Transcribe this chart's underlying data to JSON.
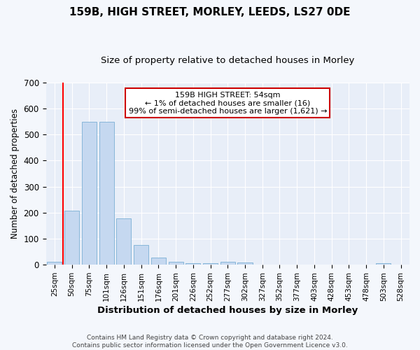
{
  "title": "159B, HIGH STREET, MORLEY, LEEDS, LS27 0DE",
  "subtitle": "Size of property relative to detached houses in Morley",
  "xlabel": "Distribution of detached houses by size in Morley",
  "ylabel": "Number of detached properties",
  "footer_line1": "Contains HM Land Registry data © Crown copyright and database right 2024.",
  "footer_line2": "Contains public sector information licensed under the Open Government Licence v3.0.",
  "annotation_title": "159B HIGH STREET: 54sqm",
  "annotation_line1": "← 1% of detached houses are smaller (16)",
  "annotation_line2": "99% of semi-detached houses are larger (1,621) →",
  "bar_color": "#c5d8f0",
  "bar_edge_color": "#7bafd4",
  "red_line_index": 1,
  "categories": [
    "25sqm",
    "50sqm",
    "75sqm",
    "101sqm",
    "126sqm",
    "151sqm",
    "176sqm",
    "201sqm",
    "226sqm",
    "252sqm",
    "277sqm",
    "302sqm",
    "327sqm",
    "352sqm",
    "377sqm",
    "403sqm",
    "428sqm",
    "453sqm",
    "478sqm",
    "503sqm",
    "528sqm"
  ],
  "values": [
    12,
    207,
    550,
    550,
    178,
    75,
    28,
    10,
    7,
    5,
    10,
    8,
    0,
    0,
    0,
    0,
    0,
    0,
    0,
    5,
    0
  ],
  "ylim": [
    0,
    700
  ],
  "yticks": [
    0,
    100,
    200,
    300,
    400,
    500,
    600,
    700
  ],
  "background_color": "#f4f7fc",
  "plot_bg_color": "#e8eef8",
  "grid_color": "#ffffff",
  "title_fontsize": 11,
  "subtitle_fontsize": 9.5,
  "xlabel_fontsize": 9.5,
  "ylabel_fontsize": 8.5,
  "annotation_box_color": "#ffffff",
  "annotation_box_edge": "#cc0000"
}
